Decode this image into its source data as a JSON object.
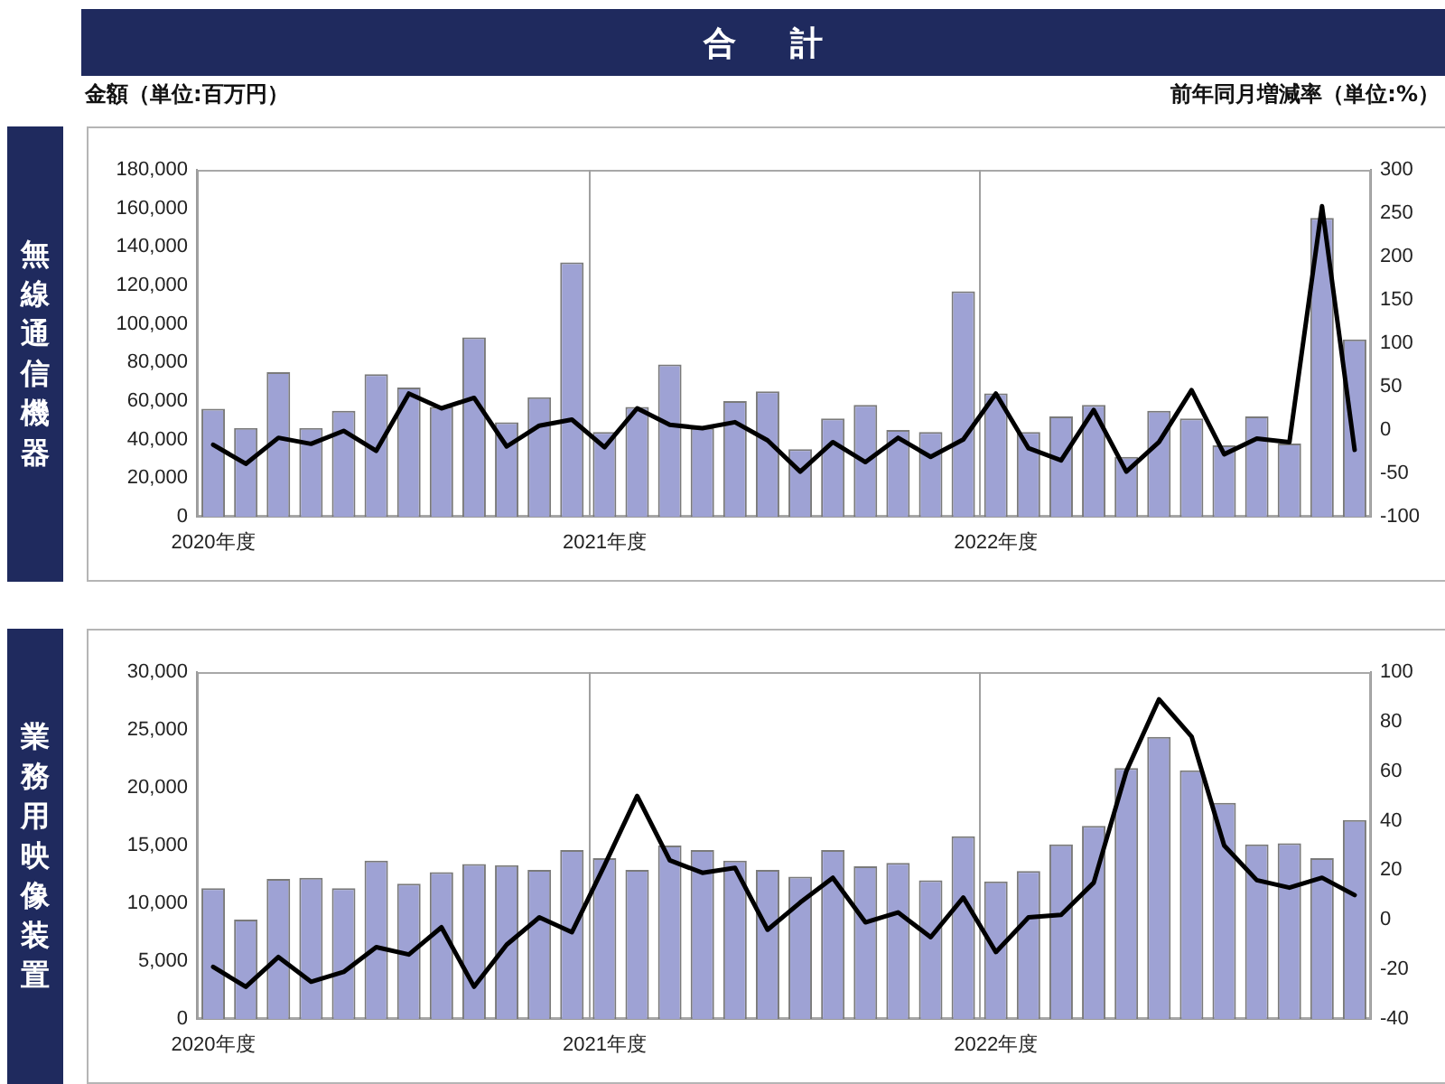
{
  "chart_data": [
    {
      "type": "bar",
      "title": "無線通信機器",
      "annotations": [
        "合　計"
      ],
      "ylabel": "金額（単位:百万円）",
      "y2label": "前年同月増減率（単位:%）",
      "categories": [
        "2020年度",
        null,
        null,
        null,
        null,
        null,
        null,
        null,
        null,
        null,
        null,
        null,
        "2021年度",
        null,
        null,
        null,
        null,
        null,
        null,
        null,
        null,
        null,
        null,
        null,
        "2022年度",
        null,
        null,
        null,
        null,
        null,
        null,
        null,
        null,
        null,
        null,
        null
      ],
      "series": [
        {
          "color": "#9ea2d4",
          "values": [
            56000,
            46000,
            75000,
            46000,
            55000,
            74000,
            67000,
            57000,
            93000,
            49000,
            62000,
            132000,
            44000,
            57000,
            79000,
            46000,
            60000,
            65000,
            35000,
            51000,
            58000,
            45000,
            44000,
            117000,
            64000,
            44000,
            52000,
            58000,
            31000,
            55000,
            51000,
            37000,
            52000,
            38000,
            155000,
            92000
          ]
        },
        {
          "type": "line",
          "axis": "y2",
          "color": "#000000",
          "values": [
            -17,
            -39,
            -9,
            -16,
            -1,
            -24,
            42,
            25,
            37,
            -19,
            5,
            12,
            -20,
            25,
            6,
            2,
            9,
            -12,
            -48,
            -14,
            -37,
            -9,
            -31,
            -11,
            42,
            -21,
            -35,
            23,
            -48,
            -14,
            46,
            -28,
            -10,
            -14,
            258,
            -23
          ]
        }
      ],
      "ylim": [
        0,
        180000
      ],
      "yticks": [
        0,
        {
          "value": 20000,
          "label": "20,000"
        },
        {
          "value": 40000,
          "label": "40,000"
        },
        {
          "value": 60000,
          "label": "60,000"
        },
        {
          "value": 80000,
          "label": "80,000"
        },
        {
          "value": 100000,
          "label": "100,000"
        },
        {
          "value": 120000,
          "label": "120,000"
        },
        {
          "value": 140000,
          "label": "140,000"
        },
        {
          "value": 160000,
          "label": "160,000"
        },
        {
          "value": 180000,
          "label": "180,000"
        }
      ],
      "y2lim": [
        -100,
        300
      ],
      "y2ticks": [
        -100,
        -50,
        0,
        50,
        100,
        150,
        200,
        250,
        300
      ],
      "marker": "none",
      "grid": "x"
    },
    {
      "type": "bar",
      "title": "業務用映像装置",
      "categories": [
        "2020年度",
        null,
        null,
        null,
        null,
        null,
        null,
        null,
        null,
        null,
        null,
        null,
        "2021年度",
        null,
        null,
        null,
        null,
        null,
        null,
        null,
        null,
        null,
        null,
        null,
        "2022年度",
        null,
        null,
        null,
        null,
        null,
        null,
        null,
        null,
        null,
        null,
        null
      ],
      "series": [
        {
          "color": "#9ea2d4",
          "values": [
            11300,
            8600,
            12100,
            12200,
            11300,
            13700,
            11700,
            12700,
            13400,
            13300,
            12900,
            14600,
            13900,
            12900,
            15000,
            14600,
            13700,
            12900,
            12300,
            14600,
            13200,
            13500,
            12000,
            15800,
            11900,
            12800,
            15100,
            16700,
            21700,
            24400,
            21500,
            18700,
            15100,
            15200,
            13900,
            17200
          ]
        },
        {
          "type": "line",
          "axis": "y2",
          "color": "#000000",
          "values": [
            -19,
            -27,
            -15,
            -25,
            -21,
            -11,
            -14,
            -3,
            -27,
            -10,
            1,
            -5,
            22,
            50,
            24,
            19,
            21,
            -4,
            7,
            17,
            -1,
            3,
            -7,
            9,
            -13,
            1,
            2,
            15,
            60,
            89,
            74,
            30,
            16,
            13,
            17,
            10
          ]
        }
      ],
      "ylim": [
        0,
        30000
      ],
      "yticks": [
        0,
        {
          "value": 5000,
          "label": "5,000"
        },
        {
          "value": 10000,
          "label": "10,000"
        },
        {
          "value": 15000,
          "label": "15,000"
        },
        {
          "value": 20000,
          "label": "20,000"
        },
        {
          "value": 25000,
          "label": "25,000"
        },
        {
          "value": 30000,
          "label": "30,000"
        }
      ],
      "y2lim": [
        -40,
        100
      ],
      "y2ticks": [
        -40,
        -20,
        0,
        20,
        40,
        60,
        80,
        100
      ],
      "marker": "none",
      "grid": "x"
    }
  ]
}
